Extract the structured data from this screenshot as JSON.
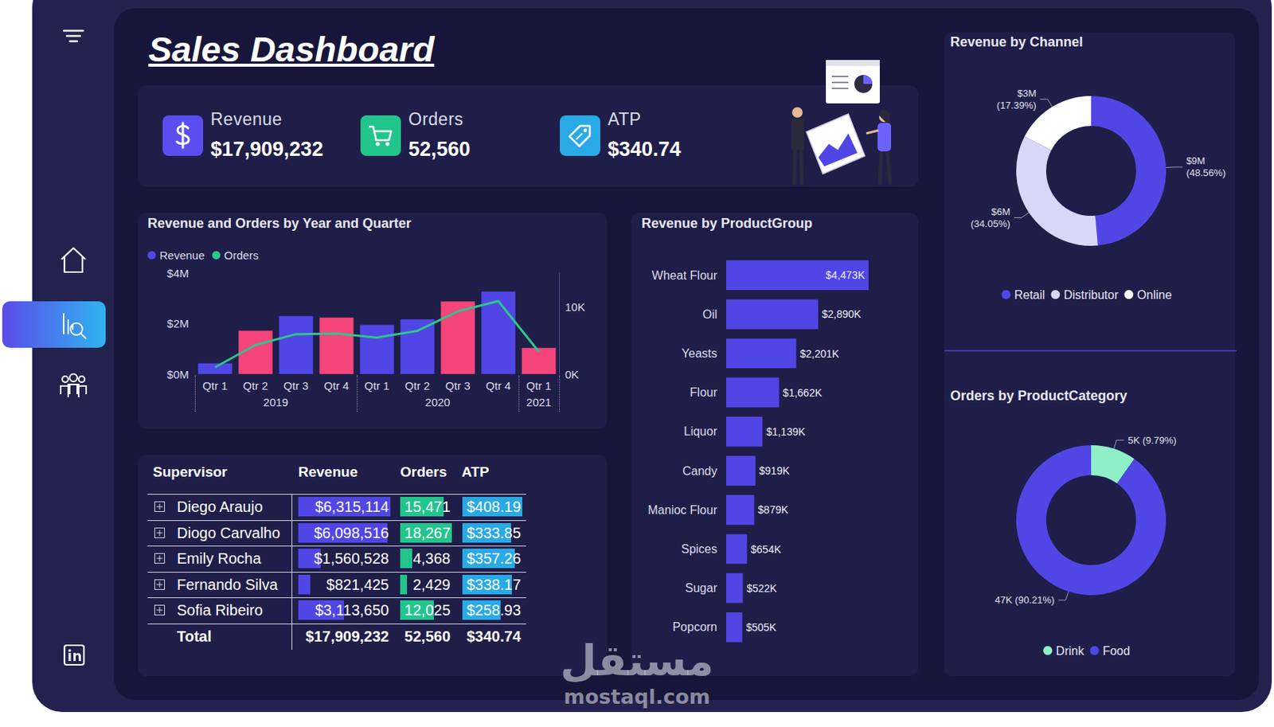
{
  "title": "Sales Dashboard",
  "kpis": [
    {
      "label": "Revenue",
      "value": "$17,909,232"
    },
    {
      "label": "Orders",
      "value": "52,560"
    },
    {
      "label": "ATP",
      "value": "$340.74"
    }
  ],
  "chart_data": [
    {
      "type": "bar",
      "title": "Revenue and Orders by Year and Quarter",
      "categories": [
        "Qtr 1",
        "Qtr 2",
        "Qtr 3",
        "Qtr 4",
        "Qtr 1",
        "Qtr 2",
        "Qtr 3",
        "Qtr 4",
        "Qtr 1"
      ],
      "category_groups": [
        "2019",
        "2019",
        "2019",
        "2019",
        "2020",
        "2020",
        "2020",
        "2020",
        "2021"
      ],
      "series": [
        {
          "name": "Revenue",
          "type": "bar",
          "color": "#5046e5",
          "colors": [
            "#5046e5",
            "#f5457a",
            "#5046e5",
            "#f5457a",
            "#5046e5",
            "#5046e5",
            "#f5457a",
            "#5046e5",
            "#f5457a"
          ],
          "values": [
            420000,
            1710000,
            2290000,
            2230000,
            1940000,
            2160000,
            2870000,
            3260000,
            1030000
          ]
        },
        {
          "name": "Orders",
          "type": "line",
          "axis": "y2",
          "color": "#2ec58d",
          "values": [
            1000,
            4300,
            5900,
            6000,
            5400,
            6400,
            9300,
            10800,
            3300
          ]
        }
      ],
      "ylim": [
        0,
        4000000
      ],
      "yticks": [
        {
          "value": 0,
          "label": "$0M"
        },
        {
          "value": 2000000,
          "label": "$2M"
        },
        {
          "value": 4000000,
          "label": "$4M"
        }
      ],
      "y2lim": [
        0,
        15000
      ],
      "y2ticks": [
        {
          "value": 0,
          "label": "0K"
        },
        {
          "value": 10000,
          "label": "10K"
        }
      ],
      "legend": "top-left",
      "grid": false
    },
    {
      "type": "bar",
      "orientation": "horizontal",
      "title": "Revenue by ProductGroup",
      "categories": [
        "Wheat Flour",
        "Oil",
        "Yeasts",
        "Flour",
        "Liquor",
        "Candy",
        "Manioc Flour",
        "Spices",
        "Sugar",
        "Popcorn"
      ],
      "values": [
        4473,
        2890,
        2201,
        1662,
        1139,
        919,
        879,
        654,
        522,
        505
      ],
      "value_labels": [
        "$4,473K",
        "$2,890K",
        "$2,201K",
        "$1,662K",
        "$1,139K",
        "$919K",
        "$879K",
        "$654K",
        "$522K",
        "$505K"
      ],
      "data_labels": true,
      "color": "#5046e5",
      "xlim": [
        0,
        4473
      ],
      "tick_labels": "y",
      "grid": false
    },
    {
      "type": "donut",
      "title": "Revenue by Channel",
      "categories": [
        "Retail",
        "Distributor",
        "Online"
      ],
      "values": [
        8696723,
        6098094,
        3114415
      ],
      "value_labels": [
        "$9M (48.56%)",
        "$6M (34.05%)",
        "$3M (17.39%)"
      ],
      "colors": [
        "#5046e5",
        "#d9d7f7",
        "#ffffff"
      ],
      "data_labels": true,
      "legend": "bottom"
    },
    {
      "type": "donut",
      "title": "Orders by ProductCategory",
      "categories": [
        "Drink",
        "Food"
      ],
      "values": [
        5146,
        47414
      ],
      "value_labels": [
        "5K (9.79%)",
        "47K (90.21%)"
      ],
      "colors": [
        "#8ff0c8",
        "#5046e5"
      ],
      "data_labels": true,
      "legend": "bottom"
    }
  ],
  "table": {
    "columns": [
      "Supervisor",
      "Revenue",
      "Orders",
      "ATP"
    ],
    "rows": [
      [
        "Diego Araujo",
        "$6,315,114",
        "15,471",
        "$408.19"
      ],
      [
        "Diogo Carvalho",
        "$6,098,516",
        "18,267",
        "$333.85"
      ],
      [
        "Emily Rocha",
        "$1,560,528",
        "4,368",
        "$357.26"
      ],
      [
        "Fernando Silva",
        "$821,425",
        "2,429",
        "$338.17"
      ],
      [
        "Sofia Ribeiro",
        "$3,113,650",
        "12,025",
        "$258.93"
      ]
    ],
    "total": [
      "Total",
      "$17,909,232",
      "52,560",
      "$340.74"
    ]
  },
  "watermark": [
    "مستقل",
    "mostaql.com"
  ]
}
